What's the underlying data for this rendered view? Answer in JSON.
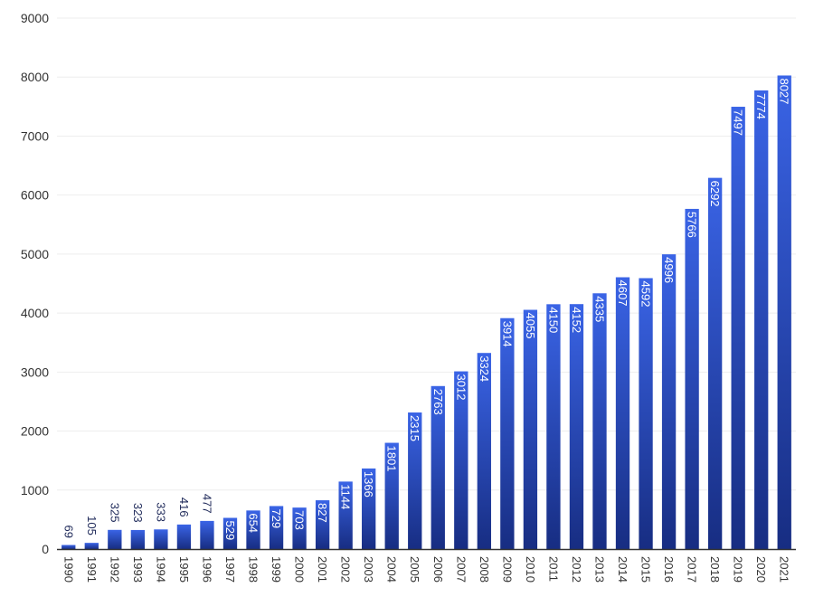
{
  "chart_data": {
    "type": "bar",
    "categories": [
      "1990",
      "1991",
      "1992",
      "1993",
      "1994",
      "1995",
      "1996",
      "1997",
      "1998",
      "1999",
      "2000",
      "2001",
      "2002",
      "2003",
      "2004",
      "2005",
      "2006",
      "2007",
      "2008",
      "2009",
      "2010",
      "2011",
      "2012",
      "2013",
      "2014",
      "2015",
      "2016",
      "2017",
      "2018",
      "2019",
      "2020",
      "2021"
    ],
    "values": [
      69,
      105,
      325,
      323,
      333,
      416,
      477,
      529,
      654,
      729,
      703,
      827,
      1144,
      1366,
      1801,
      2315,
      2763,
      3012,
      3324,
      3914,
      4055,
      4150,
      4152,
      4335,
      4607,
      4592,
      4996,
      5766,
      6292,
      7497,
      7774,
      8027
    ],
    "ylim": [
      0,
      9000
    ],
    "yticks": [
      0,
      1000,
      2000,
      3000,
      4000,
      5000,
      6000,
      7000,
      8000,
      9000
    ],
    "grid": true,
    "legend": "none",
    "colors": {
      "bar_top": "#3a64e6",
      "bar_bottom": "#172d82",
      "label_inside": "#ffffff",
      "label_outside": "#1f2a5a",
      "grid": "#eeeeee",
      "axis": "#333333"
    }
  }
}
